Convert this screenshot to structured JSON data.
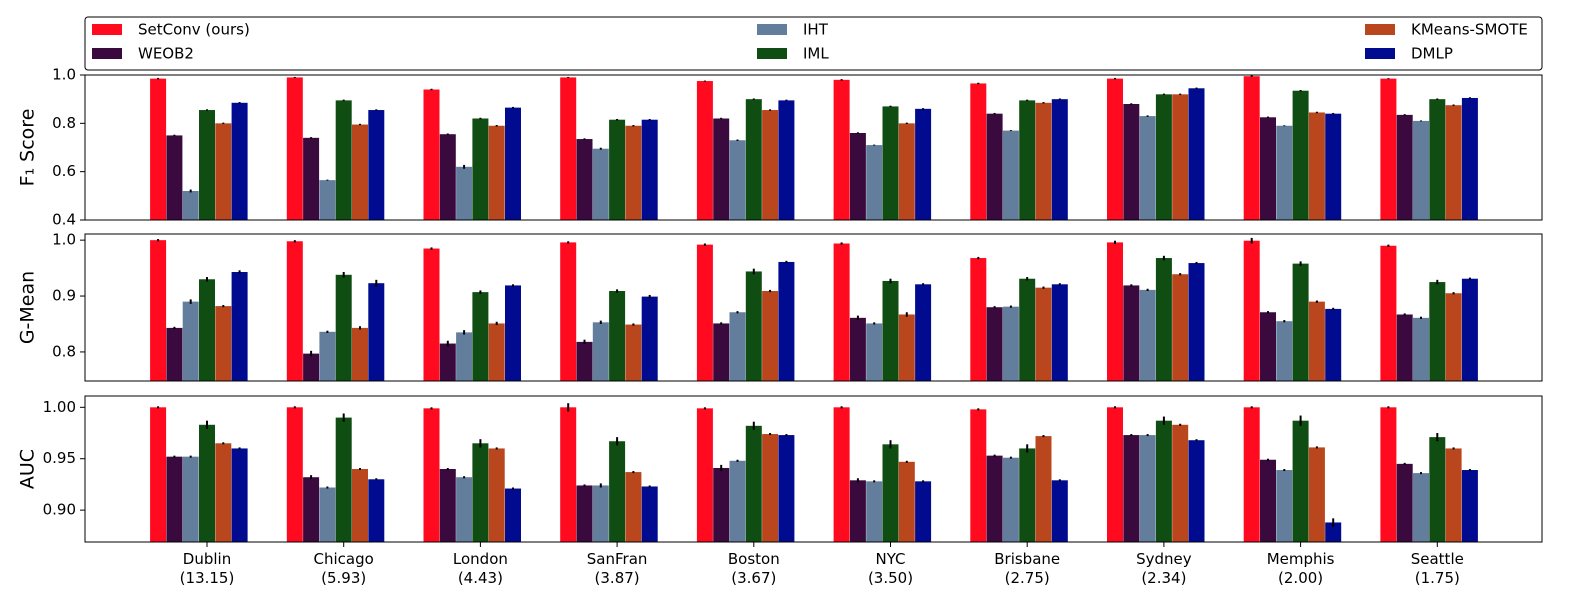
{
  "chart_data": [
    {
      "type": "bar",
      "ylabel": "F₁ Score",
      "legend": "top",
      "ylim": [
        0.4,
        1.0
      ],
      "yticks": [
        {
          "value": 0.4,
          "label": "0.4"
        },
        {
          "value": 0.6,
          "label": "0.6"
        },
        {
          "value": 0.8,
          "label": "0.8"
        },
        {
          "value": 1.0,
          "label": "1.0"
        }
      ],
      "series": [
        {
          "name": "SetConv (ours)",
          "color": "#ff0a1f",
          "values": [
            0.985,
            0.99,
            0.94,
            0.99,
            0.975,
            0.98,
            0.965,
            0.985,
            0.995,
            0.985
          ],
          "errors": [
            0.003,
            0.002,
            0.003,
            0.002,
            0.002,
            0.003,
            0.003,
            0.003,
            0.003,
            0.002
          ]
        },
        {
          "name": "WEOB2",
          "color": "#3a0a3f",
          "values": [
            0.75,
            0.74,
            0.755,
            0.735,
            0.82,
            0.76,
            0.84,
            0.88,
            0.825,
            0.835
          ],
          "errors": [
            0.003,
            0.003,
            0.003,
            0.003,
            0.003,
            0.003,
            0.003,
            0.003,
            0.003,
            0.003
          ]
        },
        {
          "name": "IHT",
          "color": "#637d9c",
          "values": [
            0.52,
            0.565,
            0.62,
            0.695,
            0.73,
            0.71,
            0.77,
            0.83,
            0.79,
            0.81
          ],
          "errors": [
            0.006,
            0.002,
            0.008,
            0.004,
            0.003,
            0.002,
            0.002,
            0.003,
            0.002,
            0.002
          ]
        },
        {
          "name": "IML",
          "color": "#0f4d12",
          "values": [
            0.855,
            0.895,
            0.82,
            0.815,
            0.9,
            0.87,
            0.895,
            0.92,
            0.935,
            0.9
          ],
          "errors": [
            0.003,
            0.003,
            0.003,
            0.003,
            0.003,
            0.003,
            0.003,
            0.003,
            0.003,
            0.003
          ]
        },
        {
          "name": "KMeans-SMOTE",
          "color": "#b9461c",
          "values": [
            0.8,
            0.795,
            0.79,
            0.79,
            0.855,
            0.8,
            0.885,
            0.92,
            0.845,
            0.875
          ],
          "errors": [
            0.003,
            0.003,
            0.003,
            0.003,
            0.003,
            0.003,
            0.003,
            0.003,
            0.003,
            0.003
          ]
        },
        {
          "name": "DMLP",
          "color": "#000b8f",
          "values": [
            0.885,
            0.855,
            0.865,
            0.815,
            0.895,
            0.86,
            0.9,
            0.945,
            0.84,
            0.905
          ],
          "errors": [
            0.003,
            0.003,
            0.003,
            0.003,
            0.003,
            0.003,
            0.003,
            0.003,
            0.003,
            0.003
          ]
        }
      ]
    },
    {
      "type": "bar",
      "ylabel": "G-Mean",
      "ylim": [
        0.748,
        1.011
      ],
      "yticks": [
        {
          "value": 0.8,
          "label": "0.8"
        },
        {
          "value": 0.9,
          "label": "0.9"
        },
        {
          "value": 1.0,
          "label": "1.0"
        }
      ],
      "series": [
        {
          "color": "#ff0a1f",
          "values": [
            1.0,
            0.998,
            0.985,
            0.996,
            0.992,
            0.994,
            0.968,
            0.996,
            0.999,
            0.99
          ],
          "errors": [
            0.002,
            0.002,
            0.002,
            0.002,
            0.002,
            0.002,
            0.002,
            0.003,
            0.005,
            0.002
          ]
        },
        {
          "color": "#3a0a3f",
          "values": [
            0.843,
            0.797,
            0.815,
            0.818,
            0.851,
            0.861,
            0.88,
            0.919,
            0.871,
            0.867
          ],
          "errors": [
            0.002,
            0.005,
            0.005,
            0.004,
            0.002,
            0.004,
            0.002,
            0.002,
            0.002,
            0.002
          ]
        },
        {
          "color": "#637d9c",
          "values": [
            0.89,
            0.836,
            0.835,
            0.853,
            0.871,
            0.851,
            0.881,
            0.911,
            0.855,
            0.861
          ],
          "errors": [
            0.004,
            0.002,
            0.004,
            0.003,
            0.002,
            0.002,
            0.002,
            0.002,
            0.002,
            0.002
          ]
        },
        {
          "color": "#0f4d12",
          "values": [
            0.93,
            0.938,
            0.907,
            0.909,
            0.944,
            0.927,
            0.931,
            0.968,
            0.958,
            0.925
          ],
          "errors": [
            0.004,
            0.005,
            0.003,
            0.003,
            0.005,
            0.004,
            0.003,
            0.004,
            0.004,
            0.004
          ]
        },
        {
          "color": "#b9461c",
          "values": [
            0.882,
            0.843,
            0.851,
            0.849,
            0.909,
            0.867,
            0.915,
            0.939,
            0.89,
            0.905
          ],
          "errors": [
            0.002,
            0.003,
            0.003,
            0.002,
            0.002,
            0.004,
            0.002,
            0.002,
            0.002,
            0.002
          ]
        },
        {
          "color": "#000b8f",
          "values": [
            0.943,
            0.923,
            0.919,
            0.899,
            0.961,
            0.921,
            0.921,
            0.959,
            0.877,
            0.931
          ],
          "errors": [
            0.003,
            0.006,
            0.002,
            0.003,
            0.002,
            0.002,
            0.002,
            0.002,
            0.002,
            0.002
          ]
        }
      ]
    },
    {
      "type": "bar",
      "ylabel": "AUC",
      "ylim": [
        0.869,
        1.011
      ],
      "yticks": [
        {
          "value": 0.9,
          "label": "0.90"
        },
        {
          "value": 0.95,
          "label": "0.95"
        },
        {
          "value": 1.0,
          "label": "1.00"
        }
      ],
      "categories": [
        "Dublin\n(13.15)",
        "Chicago\n(5.93)",
        "London\n(4.43)",
        "SanFran\n(3.87)",
        "Boston\n(3.67)",
        "NYC\n(3.50)",
        "Brisbane\n(2.75)",
        "Sydney\n(2.34)",
        "Memphis\n(2.00)",
        "Seattle\n(1.75)"
      ],
      "series": [
        {
          "color": "#ff0a1f",
          "values": [
            1.0,
            1.0,
            0.999,
            1.0,
            0.999,
            1.0,
            0.998,
            1.0,
            1.0,
            1.0
          ],
          "errors": [
            0.001,
            0.001,
            0.001,
            0.004,
            0.001,
            0.001,
            0.001,
            0.001,
            0.001,
            0.001
          ]
        },
        {
          "color": "#3a0a3f",
          "values": [
            0.952,
            0.932,
            0.94,
            0.924,
            0.941,
            0.929,
            0.953,
            0.973,
            0.949,
            0.945
          ],
          "errors": [
            0.001,
            0.002,
            0.001,
            0.001,
            0.003,
            0.002,
            0.001,
            0.001,
            0.001,
            0.001
          ]
        },
        {
          "color": "#637d9c",
          "values": [
            0.952,
            0.922,
            0.932,
            0.924,
            0.948,
            0.928,
            0.951,
            0.973,
            0.939,
            0.936
          ],
          "errors": [
            0.001,
            0.001,
            0.001,
            0.002,
            0.001,
            0.001,
            0.001,
            0.001,
            0.001,
            0.001
          ]
        },
        {
          "color": "#0f4d12",
          "values": [
            0.983,
            0.99,
            0.965,
            0.967,
            0.982,
            0.964,
            0.96,
            0.987,
            0.987,
            0.971
          ],
          "errors": [
            0.004,
            0.004,
            0.004,
            0.004,
            0.004,
            0.004,
            0.004,
            0.004,
            0.005,
            0.004
          ]
        },
        {
          "color": "#b9461c",
          "values": [
            0.965,
            0.94,
            0.96,
            0.937,
            0.974,
            0.947,
            0.972,
            0.983,
            0.961,
            0.96
          ],
          "errors": [
            0.001,
            0.001,
            0.001,
            0.001,
            0.001,
            0.001,
            0.001,
            0.001,
            0.001,
            0.001
          ]
        },
        {
          "color": "#000b8f",
          "values": [
            0.96,
            0.93,
            0.921,
            0.923,
            0.973,
            0.928,
            0.929,
            0.968,
            0.888,
            0.939
          ],
          "errors": [
            0.001,
            0.001,
            0.001,
            0.001,
            0.001,
            0.001,
            0.001,
            0.001,
            0.004,
            0.001
          ]
        }
      ]
    }
  ]
}
